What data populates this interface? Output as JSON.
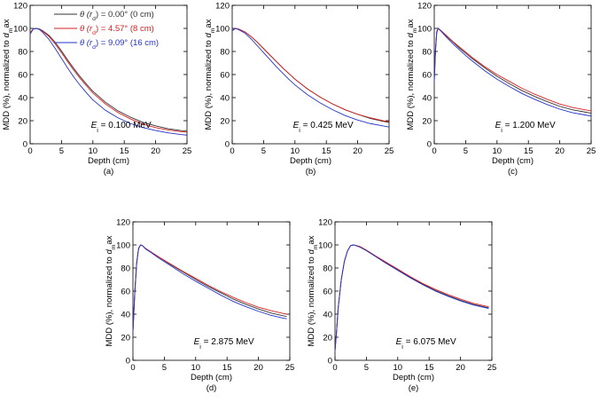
{
  "colors": {
    "series_0cm": "#333333",
    "series_8cm": "#d62020",
    "series_16cm": "#2233cc",
    "axis": "#000000"
  },
  "legend": [
    {
      "label": "θ (r_d) = 0.00° (0 cm)",
      "color": "#333333"
    },
    {
      "label": "θ (r_d) = 4.57° (8 cm)",
      "color": "#d62020"
    },
    {
      "label": "θ (r_d) = 9.09° (16 cm)",
      "color": "#2233cc"
    }
  ],
  "chart_data": [
    {
      "type": "line",
      "panel_label": "(a)",
      "energy_label": "E_i = 0.100 MeV",
      "xlabel": "Depth (cm)",
      "ylabel": "MDD (%), normalized to d_max",
      "xlim": [
        0,
        25
      ],
      "ylim": [
        0,
        120
      ],
      "xticks": [
        0,
        5,
        10,
        15,
        20,
        25
      ],
      "yticks": [
        0,
        20,
        40,
        60,
        80,
        100,
        120
      ],
      "series": [
        {
          "name": "0 cm",
          "x": [
            0,
            0.5,
            1,
            1.5,
            2,
            3,
            4,
            5,
            6,
            7,
            8,
            9,
            10,
            12,
            14,
            16,
            18,
            20,
            22,
            24,
            25
          ],
          "y": [
            96,
            99.5,
            100,
            99.5,
            98,
            94,
            88,
            80.5,
            72.5,
            65,
            58,
            51.5,
            45.5,
            36,
            28.5,
            23,
            18.5,
            15.5,
            13,
            11.5,
            11
          ]
        },
        {
          "name": "8 cm",
          "x": [
            0,
            0.5,
            1,
            1.5,
            2,
            3,
            4,
            5,
            6,
            7,
            8,
            9,
            10,
            12,
            14,
            16,
            18,
            20,
            22,
            24,
            25
          ],
          "y": [
            96,
            99.5,
            100,
            99.3,
            97.5,
            93,
            86.5,
            79,
            71,
            63.5,
            56.5,
            50,
            44,
            34.5,
            27,
            21.5,
            17,
            14,
            12,
            10.5,
            10
          ]
        },
        {
          "name": "16 cm",
          "x": [
            0,
            0.5,
            1,
            1.5,
            2,
            3,
            4,
            5,
            6,
            7,
            8,
            9,
            10,
            12,
            14,
            16,
            18,
            20,
            22,
            24,
            25
          ],
          "y": [
            95,
            99.5,
            100,
            99,
            96.5,
            90.5,
            82.5,
            74,
            65.5,
            57.5,
            50.5,
            44,
            38,
            29,
            22.5,
            17.5,
            14,
            11.5,
            9.5,
            8,
            7.5
          ]
        }
      ]
    },
    {
      "type": "line",
      "panel_label": "(b)",
      "energy_label": "E_i = 0.425 MeV",
      "xlabel": "Depth (cm)",
      "ylabel": "MDD (%), normalized to d_max",
      "xlim": [
        0,
        25
      ],
      "ylim": [
        0,
        120
      ],
      "xticks": [
        0,
        5,
        10,
        15,
        20,
        25
      ],
      "yticks": [
        0,
        20,
        40,
        60,
        80,
        100,
        120
      ],
      "series": [
        {
          "name": "0 cm",
          "x": [
            0,
            0.5,
            1,
            2,
            3,
            4,
            5,
            6,
            7,
            8,
            9,
            10,
            12,
            14,
            16,
            18,
            20,
            22,
            24,
            25
          ],
          "y": [
            98,
            100,
            99.5,
            97,
            93,
            88,
            82.5,
            77,
            71.5,
            66,
            61,
            56,
            47.5,
            40.5,
            34.5,
            29.5,
            25.5,
            22,
            19.5,
            18.5
          ]
        },
        {
          "name": "8 cm",
          "x": [
            0,
            0.5,
            1,
            2,
            3,
            4,
            5,
            6,
            7,
            8,
            9,
            10,
            12,
            14,
            16,
            18,
            20,
            22,
            24,
            25
          ],
          "y": [
            98,
            100,
            99.5,
            97,
            93,
            88,
            82.5,
            77,
            71.5,
            66,
            61,
            56,
            47.5,
            40.5,
            34.5,
            29.5,
            25.5,
            22.5,
            20,
            19
          ]
        },
        {
          "name": "16 cm",
          "x": [
            0,
            0.5,
            1,
            2,
            3,
            4,
            5,
            6,
            7,
            8,
            9,
            10,
            12,
            14,
            16,
            18,
            20,
            22,
            24,
            25
          ],
          "y": [
            98,
            100,
            99,
            96,
            91,
            85,
            79,
            73,
            67,
            61.5,
            56,
            51,
            42.5,
            35.5,
            29.5,
            24.5,
            20.5,
            17.5,
            15.5,
            14.5
          ]
        }
      ]
    },
    {
      "type": "line",
      "panel_label": "(c)",
      "energy_label": "E_i = 1.200 MeV",
      "xlabel": "Depth (cm)",
      "ylabel": "MDD (%), normalized to d_max",
      "xlim": [
        0,
        25
      ],
      "ylim": [
        0,
        120
      ],
      "xticks": [
        0,
        5,
        10,
        15,
        20,
        25
      ],
      "yticks": [
        0,
        20,
        40,
        60,
        80,
        100,
        120
      ],
      "series": [
        {
          "name": "0 cm",
          "x": [
            0,
            0.2,
            0.4,
            0.6,
            1,
            2,
            3,
            4,
            5,
            6,
            8,
            10,
            12,
            14,
            16,
            18,
            20,
            22,
            24,
            25
          ],
          "y": [
            55,
            82,
            97,
            100,
            98.5,
            93,
            88,
            83,
            78.5,
            74,
            66,
            58.5,
            52,
            46,
            41,
            36.5,
            32.5,
            29.5,
            27.5,
            26.5
          ]
        },
        {
          "name": "8 cm",
          "x": [
            0,
            0.2,
            0.4,
            0.6,
            1,
            2,
            3,
            4,
            5,
            6,
            8,
            10,
            12,
            14,
            16,
            18,
            20,
            22,
            24,
            25
          ],
          "y": [
            56,
            83,
            97.5,
            100,
            98.5,
            93.5,
            88.5,
            84,
            79.5,
            75,
            67,
            60,
            54,
            48,
            43,
            38.5,
            34.5,
            31.5,
            29.5,
            28.5
          ]
        },
        {
          "name": "16 cm",
          "x": [
            0,
            0.2,
            0.4,
            0.6,
            1,
            2,
            3,
            4,
            5,
            6,
            8,
            10,
            12,
            14,
            16,
            18,
            20,
            22,
            24,
            25
          ],
          "y": [
            54,
            80,
            96,
            100,
            98,
            92,
            86.5,
            81.5,
            76.5,
            72,
            63.5,
            56,
            49.5,
            43.5,
            38.5,
            34,
            30,
            27,
            25,
            24
          ]
        }
      ]
    },
    {
      "type": "line",
      "panel_label": "(d)",
      "energy_label": "E_i = 2.875 MeV",
      "xlabel": "Depth (cm)",
      "ylabel": "MDD (%), normalized to d_max",
      "xlim": [
        0,
        25
      ],
      "ylim": [
        0,
        120
      ],
      "xticks": [
        0,
        5,
        10,
        15,
        20,
        25
      ],
      "yticks": [
        0,
        20,
        40,
        60,
        80,
        100,
        120
      ],
      "series": [
        {
          "name": "0 cm",
          "x": [
            0,
            0.3,
            0.6,
            0.9,
            1.2,
            1.5,
            2,
            3,
            4,
            6,
            8,
            10,
            12,
            14,
            16,
            18,
            20,
            22,
            24,
            24.5
          ],
          "y": [
            25,
            60,
            85,
            97,
            100,
            99.5,
            97,
            93.5,
            90,
            83,
            76.5,
            70,
            64,
            58.5,
            53,
            48.5,
            44.5,
            41,
            38.5,
            38
          ]
        },
        {
          "name": "8 cm",
          "x": [
            0,
            0.3,
            0.6,
            0.9,
            1.2,
            1.5,
            2,
            3,
            4,
            6,
            8,
            10,
            12,
            14,
            16,
            18,
            20,
            22,
            24,
            24.5
          ],
          "y": [
            25,
            60,
            85,
            97,
            100,
            99.5,
            97,
            93.5,
            90,
            83.5,
            77,
            71,
            65,
            59.5,
            54.5,
            50,
            46,
            43,
            40.5,
            40
          ]
        },
        {
          "name": "16 cm",
          "x": [
            0,
            0.3,
            0.6,
            0.9,
            1.2,
            1.5,
            2,
            3,
            4,
            6,
            8,
            10,
            12,
            14,
            16,
            18,
            20,
            22,
            24,
            24.5
          ],
          "y": [
            24,
            58,
            84,
            96.5,
            100,
            99.5,
            96.5,
            93,
            89,
            82,
            75,
            68.5,
            62.5,
            56.5,
            51,
            46.5,
            42.5,
            39,
            36.5,
            36
          ]
        }
      ]
    },
    {
      "type": "line",
      "panel_label": "(e)",
      "energy_label": "E_i = 6.075 MeV",
      "xlabel": "Depth (cm)",
      "ylabel": "MDD (%), normalized to d_max",
      "xlim": [
        0,
        25
      ],
      "ylim": [
        0,
        120
      ],
      "xticks": [
        0,
        5,
        10,
        15,
        20,
        25
      ],
      "yticks": [
        0,
        20,
        40,
        60,
        80,
        100,
        120
      ],
      "series": [
        {
          "name": "0 cm",
          "x": [
            0,
            0.25,
            0.5,
            1,
            1.5,
            2,
            2.5,
            3,
            4,
            5,
            6,
            8,
            10,
            12,
            14,
            16,
            18,
            20,
            22,
            24,
            24.5
          ],
          "y": [
            8,
            25,
            45,
            70,
            86,
            95,
            99.5,
            100,
            98.5,
            95.5,
            92,
            85,
            78.5,
            72,
            66,
            60.5,
            56,
            52,
            48.5,
            46,
            45.5
          ]
        },
        {
          "name": "8 cm",
          "x": [
            0,
            0.25,
            0.5,
            1,
            1.5,
            2,
            2.5,
            3,
            4,
            5,
            6,
            8,
            10,
            12,
            14,
            16,
            18,
            20,
            22,
            24,
            24.5
          ],
          "y": [
            8,
            25,
            45,
            70,
            86,
            95,
            99.5,
            100,
            98.5,
            95.5,
            92,
            85.5,
            79,
            72.5,
            66.5,
            61.5,
            57,
            53,
            49.5,
            47,
            46.5
          ]
        },
        {
          "name": "16 cm",
          "x": [
            0,
            0.25,
            0.5,
            1,
            1.5,
            2,
            2.5,
            3,
            4,
            5,
            6,
            8,
            10,
            12,
            14,
            16,
            18,
            20,
            22,
            24,
            24.5
          ],
          "y": [
            8,
            25,
            45,
            70,
            86,
            95,
            99.5,
            100,
            98,
            95,
            91.5,
            84.5,
            78,
            71.5,
            65.5,
            60,
            55.5,
            51.5,
            48,
            45.5,
            45
          ]
        }
      ]
    }
  ]
}
